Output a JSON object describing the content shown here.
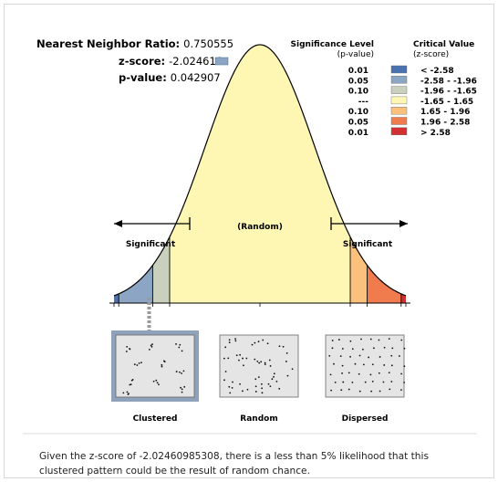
{
  "stats": {
    "nnr_label": "Nearest Neighbor Ratio:",
    "nnr_value": "0.750555",
    "z_label": "z-score:",
    "z_value": "-2.024610",
    "p_label": "p-value:",
    "p_value": "0.042907"
  },
  "legend": {
    "sig_header": [
      "Significance Level",
      "(p-value)"
    ],
    "crit_header": [
      "Critical Value",
      "(z-score)"
    ],
    "rows": [
      {
        "p": "0.01",
        "z": "< -2.58",
        "color": "#4a72b0"
      },
      {
        "p": "0.05",
        "z": "-2.58 - -1.96",
        "color": "#8ca5c4"
      },
      {
        "p": "0.10",
        "z": "-1.96 - -1.65",
        "color": "#c9d1bc"
      },
      {
        "p": "---",
        "z": "-1.65 - 1.65",
        "color": "#fdf7b3"
      },
      {
        "p": "0.10",
        "z": "1.65 - 1.96",
        "color": "#fbc07c"
      },
      {
        "p": "0.05",
        "z": "1.96 - 2.58",
        "color": "#f07c4e"
      },
      {
        "p": "0.01",
        "z": "> 2.58",
        "color": "#d33131"
      }
    ]
  },
  "curve": {
    "left_label": "Significant",
    "center_label": "(Random)",
    "right_label": "Significant",
    "z_score": -2.0246
  },
  "patterns": [
    {
      "label": "Clustered",
      "selected": true
    },
    {
      "label": "Random",
      "selected": false
    },
    {
      "label": "Dispersed",
      "selected": false
    }
  ],
  "conclusion": "Given the z-score of -2.02460985308, there is a less than 5% likelihood that this clustered pattern could be the result of random chance."
}
